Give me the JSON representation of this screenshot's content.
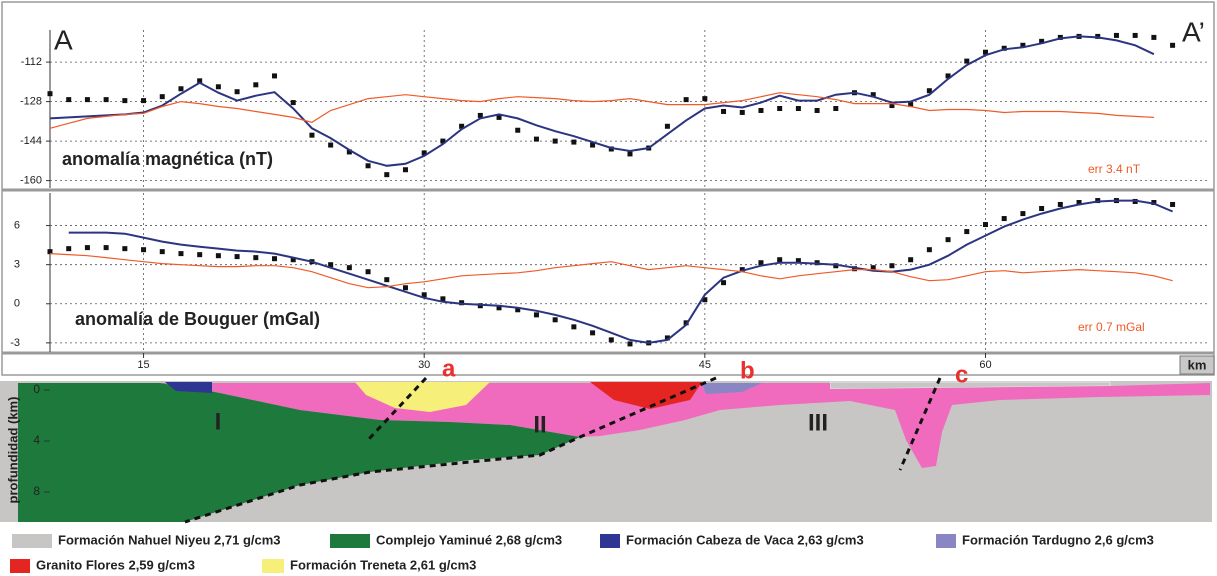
{
  "labels": {
    "start": "A",
    "end": "A’"
  },
  "chart_data": [
    {
      "type": "line",
      "label": "anomalía magnética (nT)",
      "error_note": "err 3.4 nT",
      "grid": true,
      "xlim": [
        10,
        72
      ],
      "xticks": [
        15,
        30,
        45,
        60
      ],
      "ylim": [
        -163,
        -99
      ],
      "yticks": [
        -112,
        -128,
        -144,
        -160
      ],
      "x": [
        10,
        11,
        12,
        13,
        14,
        15,
        16,
        17,
        18,
        19,
        20,
        21,
        22,
        23,
        24,
        25,
        26,
        27,
        28,
        29,
        30,
        31,
        32,
        33,
        34,
        35,
        36,
        37,
        38,
        39,
        40,
        41,
        42,
        43,
        44,
        45,
        46,
        47,
        48,
        49,
        50,
        51,
        52,
        53,
        54,
        55,
        56,
        57,
        58,
        59,
        60,
        61,
        62,
        63,
        64,
        65,
        66,
        67,
        68,
        69,
        70
      ],
      "series": [
        {
          "style": "markers",
          "color": "#111111",
          "values": [
            -124.8,
            -127.2,
            -127.2,
            -127.2,
            -127.6,
            -127.6,
            -126,
            -122.8,
            -119.6,
            -122,
            -124,
            -121.2,
            -117.6,
            -128.4,
            -141.6,
            -145.6,
            -148.4,
            -154,
            -157.6,
            -155.6,
            -148.8,
            -144,
            -138,
            -133.6,
            -134.4,
            -139.6,
            -143.2,
            -144,
            -144.4,
            -145.6,
            -147.2,
            -149.2,
            -146.8,
            -138,
            -127.2,
            -126.8,
            -132,
            -132.4,
            -131.6,
            -130.8,
            -130.8,
            -131.6,
            -130.8,
            -124.4,
            -125.2,
            -129.6,
            -129.2,
            -123.6,
            -117.6,
            -111.6,
            -108,
            -106.4,
            -105.2,
            -103.6,
            -102,
            -101.6,
            -101.6,
            -101.2,
            -101.2,
            -102,
            -105.2
          ]
        },
        {
          "style": "line",
          "color": "#2c3580",
          "values": [
            -134.8,
            -134.4,
            -134,
            -133.6,
            -133.2,
            -132.4,
            -129.6,
            -124.8,
            -120.4,
            -124.4,
            -127.6,
            -125.6,
            -124.2,
            -130.8,
            -138.8,
            -142.8,
            -147.6,
            -152,
            -154,
            -153.2,
            -150,
            -145.2,
            -139.2,
            -134.8,
            -133.2,
            -134.8,
            -137.6,
            -140,
            -142,
            -144.4,
            -146.8,
            -148,
            -146.8,
            -141.2,
            -135.6,
            -130.8,
            -129.6,
            -130.4,
            -128.4,
            -125.6,
            -127.6,
            -127.6,
            -125.2,
            -124.4,
            -126,
            -128.4,
            -128,
            -125.2,
            -118.8,
            -113.2,
            -109.2,
            -106.8,
            -106,
            -104.4,
            -102.4,
            -101.6,
            -102,
            -103.2,
            -105.2,
            -108.8,
            null
          ]
        },
        {
          "style": "line",
          "color": "#f05a28",
          "values": [
            -138.8,
            -136.8,
            -134.8,
            -134,
            -133.2,
            -132.8,
            -130,
            -128,
            -128.8,
            -130,
            -130.8,
            -132,
            -133.2,
            -134.4,
            -136.4,
            -131.6,
            -129.2,
            -126.8,
            -126,
            -125.2,
            -126,
            -126.8,
            -127.6,
            -128,
            -126.8,
            -126,
            -126.4,
            -126.8,
            -127.6,
            -128,
            -127.6,
            -126.8,
            -128,
            -129.2,
            -129.2,
            -129.2,
            -128.4,
            -127.6,
            -126,
            -124.4,
            -125.2,
            -126,
            -127.2,
            -128.8,
            -128.8,
            -128.8,
            -130,
            -131.6,
            -131.2,
            -131.2,
            -131.6,
            -132.4,
            -132,
            -132,
            -132,
            -132.4,
            -132.8,
            -133.6,
            -134,
            -134.4,
            null
          ]
        }
      ]
    },
    {
      "type": "line",
      "label": "anomalía de Bouguer (mGal)",
      "error_note": "err 0.7 mGal",
      "grid": true,
      "xlabel": "km",
      "xlim": [
        10,
        72
      ],
      "xticks": [
        15,
        30,
        45,
        60
      ],
      "ylim": [
        -3.7,
        8.5
      ],
      "yticks": [
        6,
        3,
        0,
        -3
      ],
      "x": [
        10,
        11,
        12,
        13,
        14,
        15,
        16,
        17,
        18,
        19,
        20,
        21,
        22,
        23,
        24,
        25,
        26,
        27,
        28,
        29,
        30,
        31,
        32,
        33,
        34,
        35,
        36,
        37,
        38,
        39,
        40,
        41,
        42,
        43,
        44,
        45,
        46,
        47,
        48,
        49,
        50,
        51,
        52,
        53,
        54,
        55,
        56,
        57,
        58,
        59,
        60,
        61,
        62,
        63,
        64,
        65,
        66,
        67,
        68,
        69,
        70
      ],
      "series": [
        {
          "style": "markers",
          "color": "#111111",
          "values": [
            4.0,
            4.23,
            4.31,
            4.31,
            4.23,
            4.15,
            4.0,
            3.85,
            3.77,
            3.69,
            3.62,
            3.54,
            3.46,
            3.38,
            3.23,
            3.0,
            2.77,
            2.46,
            1.85,
            1.23,
            0.69,
            0.38,
            0.08,
            -0.15,
            -0.31,
            -0.46,
            -0.85,
            -1.23,
            -1.77,
            -2.23,
            -2.77,
            -3.08,
            -3.0,
            -2.62,
            -1.46,
            0.31,
            1.62,
            2.62,
            3.15,
            3.38,
            3.31,
            3.15,
            2.92,
            2.69,
            2.77,
            2.92,
            3.38,
            4.15,
            4.92,
            5.54,
            6.08,
            6.54,
            6.92,
            7.31,
            7.62,
            7.77,
            7.92,
            7.92,
            7.85,
            7.77,
            7.62
          ]
        },
        {
          "style": "line",
          "color": "#2c3580",
          "values": [
            null,
            5.46,
            5.46,
            5.46,
            5.38,
            5.08,
            4.77,
            4.54,
            4.38,
            4.23,
            4.08,
            4.0,
            3.85,
            3.54,
            3.23,
            2.77,
            2.31,
            1.85,
            1.38,
            0.92,
            0.46,
            0.15,
            0,
            -0.08,
            -0.15,
            -0.31,
            -0.54,
            -0.85,
            -1.23,
            -1.69,
            -2.23,
            -2.77,
            -3.0,
            -2.77,
            -1.62,
            0.69,
            2.0,
            2.54,
            2.92,
            3.15,
            3.15,
            3.08,
            3.0,
            2.77,
            2.54,
            2.46,
            2.62,
            3.0,
            3.69,
            4.54,
            5.23,
            5.92,
            6.46,
            6.92,
            7.31,
            7.62,
            7.85,
            7.92,
            7.92,
            7.69,
            7.08
          ]
        },
        {
          "style": "line",
          "color": "#f05a28",
          "values": [
            3.85,
            3.77,
            3.69,
            3.54,
            3.38,
            3.23,
            3.08,
            3.0,
            2.92,
            2.85,
            2.85,
            2.92,
            2.92,
            2.77,
            2.46,
            2.0,
            1.54,
            1.23,
            1.31,
            1.54,
            1.69,
            1.92,
            2.15,
            2.23,
            2.31,
            2.38,
            2.54,
            2.77,
            2.92,
            3.08,
            3.23,
            2.92,
            2.62,
            2.77,
            2.92,
            2.77,
            2.62,
            2.46,
            2.15,
            1.92,
            2.15,
            2.31,
            2.46,
            2.62,
            2.62,
            2.46,
            2.08,
            1.77,
            1.85,
            2.15,
            2.46,
            2.54,
            2.38,
            2.46,
            2.54,
            2.62,
            2.54,
            2.46,
            2.38,
            2.15,
            1.77
          ]
        }
      ]
    },
    {
      "type": "section",
      "ylabel": "profundidad (km)",
      "ylim": [
        10.35,
        -0.94
      ],
      "yticks": [
        0,
        4,
        8
      ],
      "fault_labels": [
        "a",
        "b",
        "c"
      ],
      "fault_color": "#e8312f",
      "unit_labels": [
        "I",
        "II",
        "III"
      ],
      "legend": [
        {
          "name": "Formación Nahuel Niyeu 2,71 g/cm3",
          "color": "#c8c6c4"
        },
        {
          "name": "Complejo Yaminué 2,68 g/cm3",
          "color": "#1e7a3c"
        },
        {
          "name": "Formación Cabeza de Vaca 2,63 g/cm3",
          "color": "#2e3592"
        },
        {
          "name": "Formación Tardugno 2,6 g/cm3",
          "color": "#8a86c4"
        },
        {
          "name": "Granito Flores 2,59 g/cm3",
          "color": "#e52521"
        },
        {
          "name": "Formación Treneta 2,61 g/cm3",
          "color": "#f6f07a"
        }
      ]
    }
  ]
}
